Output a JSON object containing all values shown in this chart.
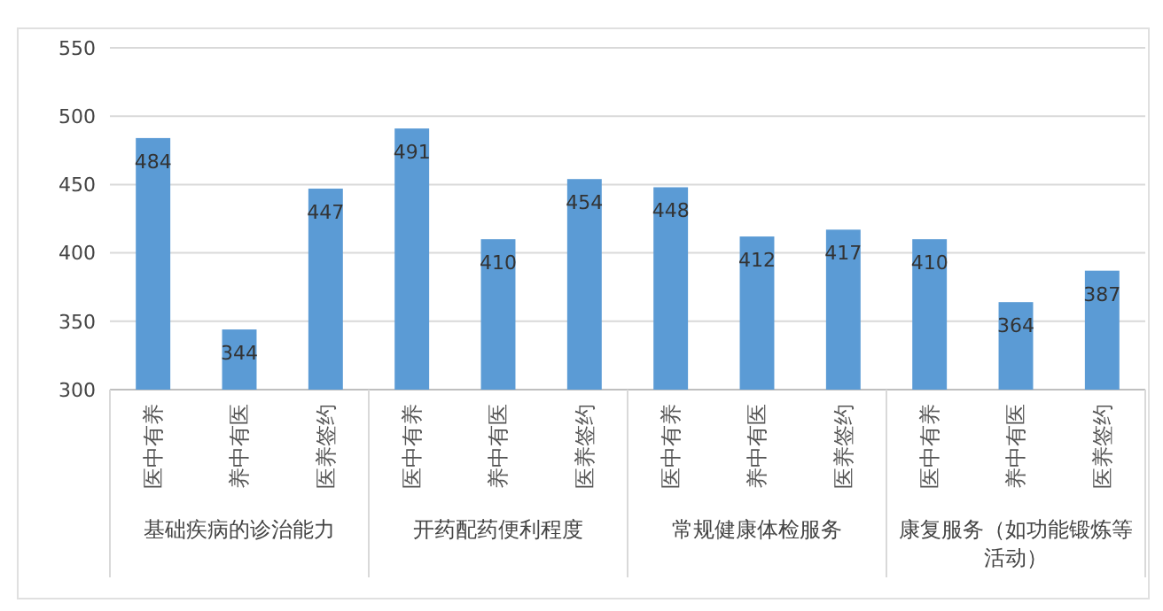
{
  "chart_data": {
    "type": "bar",
    "categories": [
      "基础疾病的诊治能力",
      "开药配药便利程度",
      "常规健康体检服务",
      "康复服务（如功能锻炼等活动）"
    ],
    "series": [
      {
        "name": "医中有养",
        "color": "#5b9bd5",
        "values": [
          484,
          491,
          448,
          410
        ]
      },
      {
        "name": "养中有医",
        "color": "#5b9bd5",
        "values": [
          344,
          410,
          412,
          364
        ]
      },
      {
        "name": "医养签约",
        "color": "#5b9bd5",
        "values": [
          447,
          454,
          417,
          387
        ]
      }
    ],
    "ylim": [
      300,
      550
    ],
    "yticks": [
      300,
      350,
      400,
      450,
      500,
      550
    ],
    "grid": "y",
    "data_labels": true
  }
}
